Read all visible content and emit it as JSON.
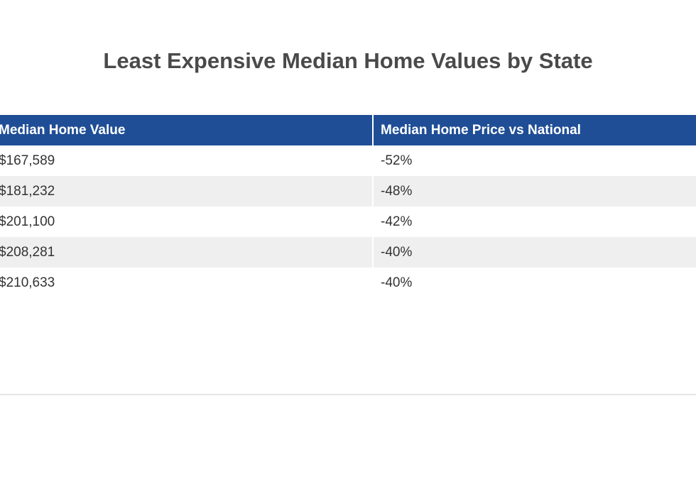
{
  "title": "Least Expensive Median Home Values by State",
  "chart_data": {
    "type": "table",
    "title": "Least Expensive Median Home Values by State",
    "columns": [
      "Median Home Value",
      "Median Home Price vs National"
    ],
    "rows": [
      [
        "$167,589",
        "-52%"
      ],
      [
        "$181,232",
        "-48%"
      ],
      [
        "$201,100",
        "-42%"
      ],
      [
        "$208,281",
        "-40%"
      ],
      [
        "$210,633",
        "-40%"
      ]
    ]
  },
  "colors": {
    "header_bg": "#1f4e96",
    "header_text": "#ffffff",
    "stripe": "#efefef",
    "title_text": "#4a4a4a"
  }
}
